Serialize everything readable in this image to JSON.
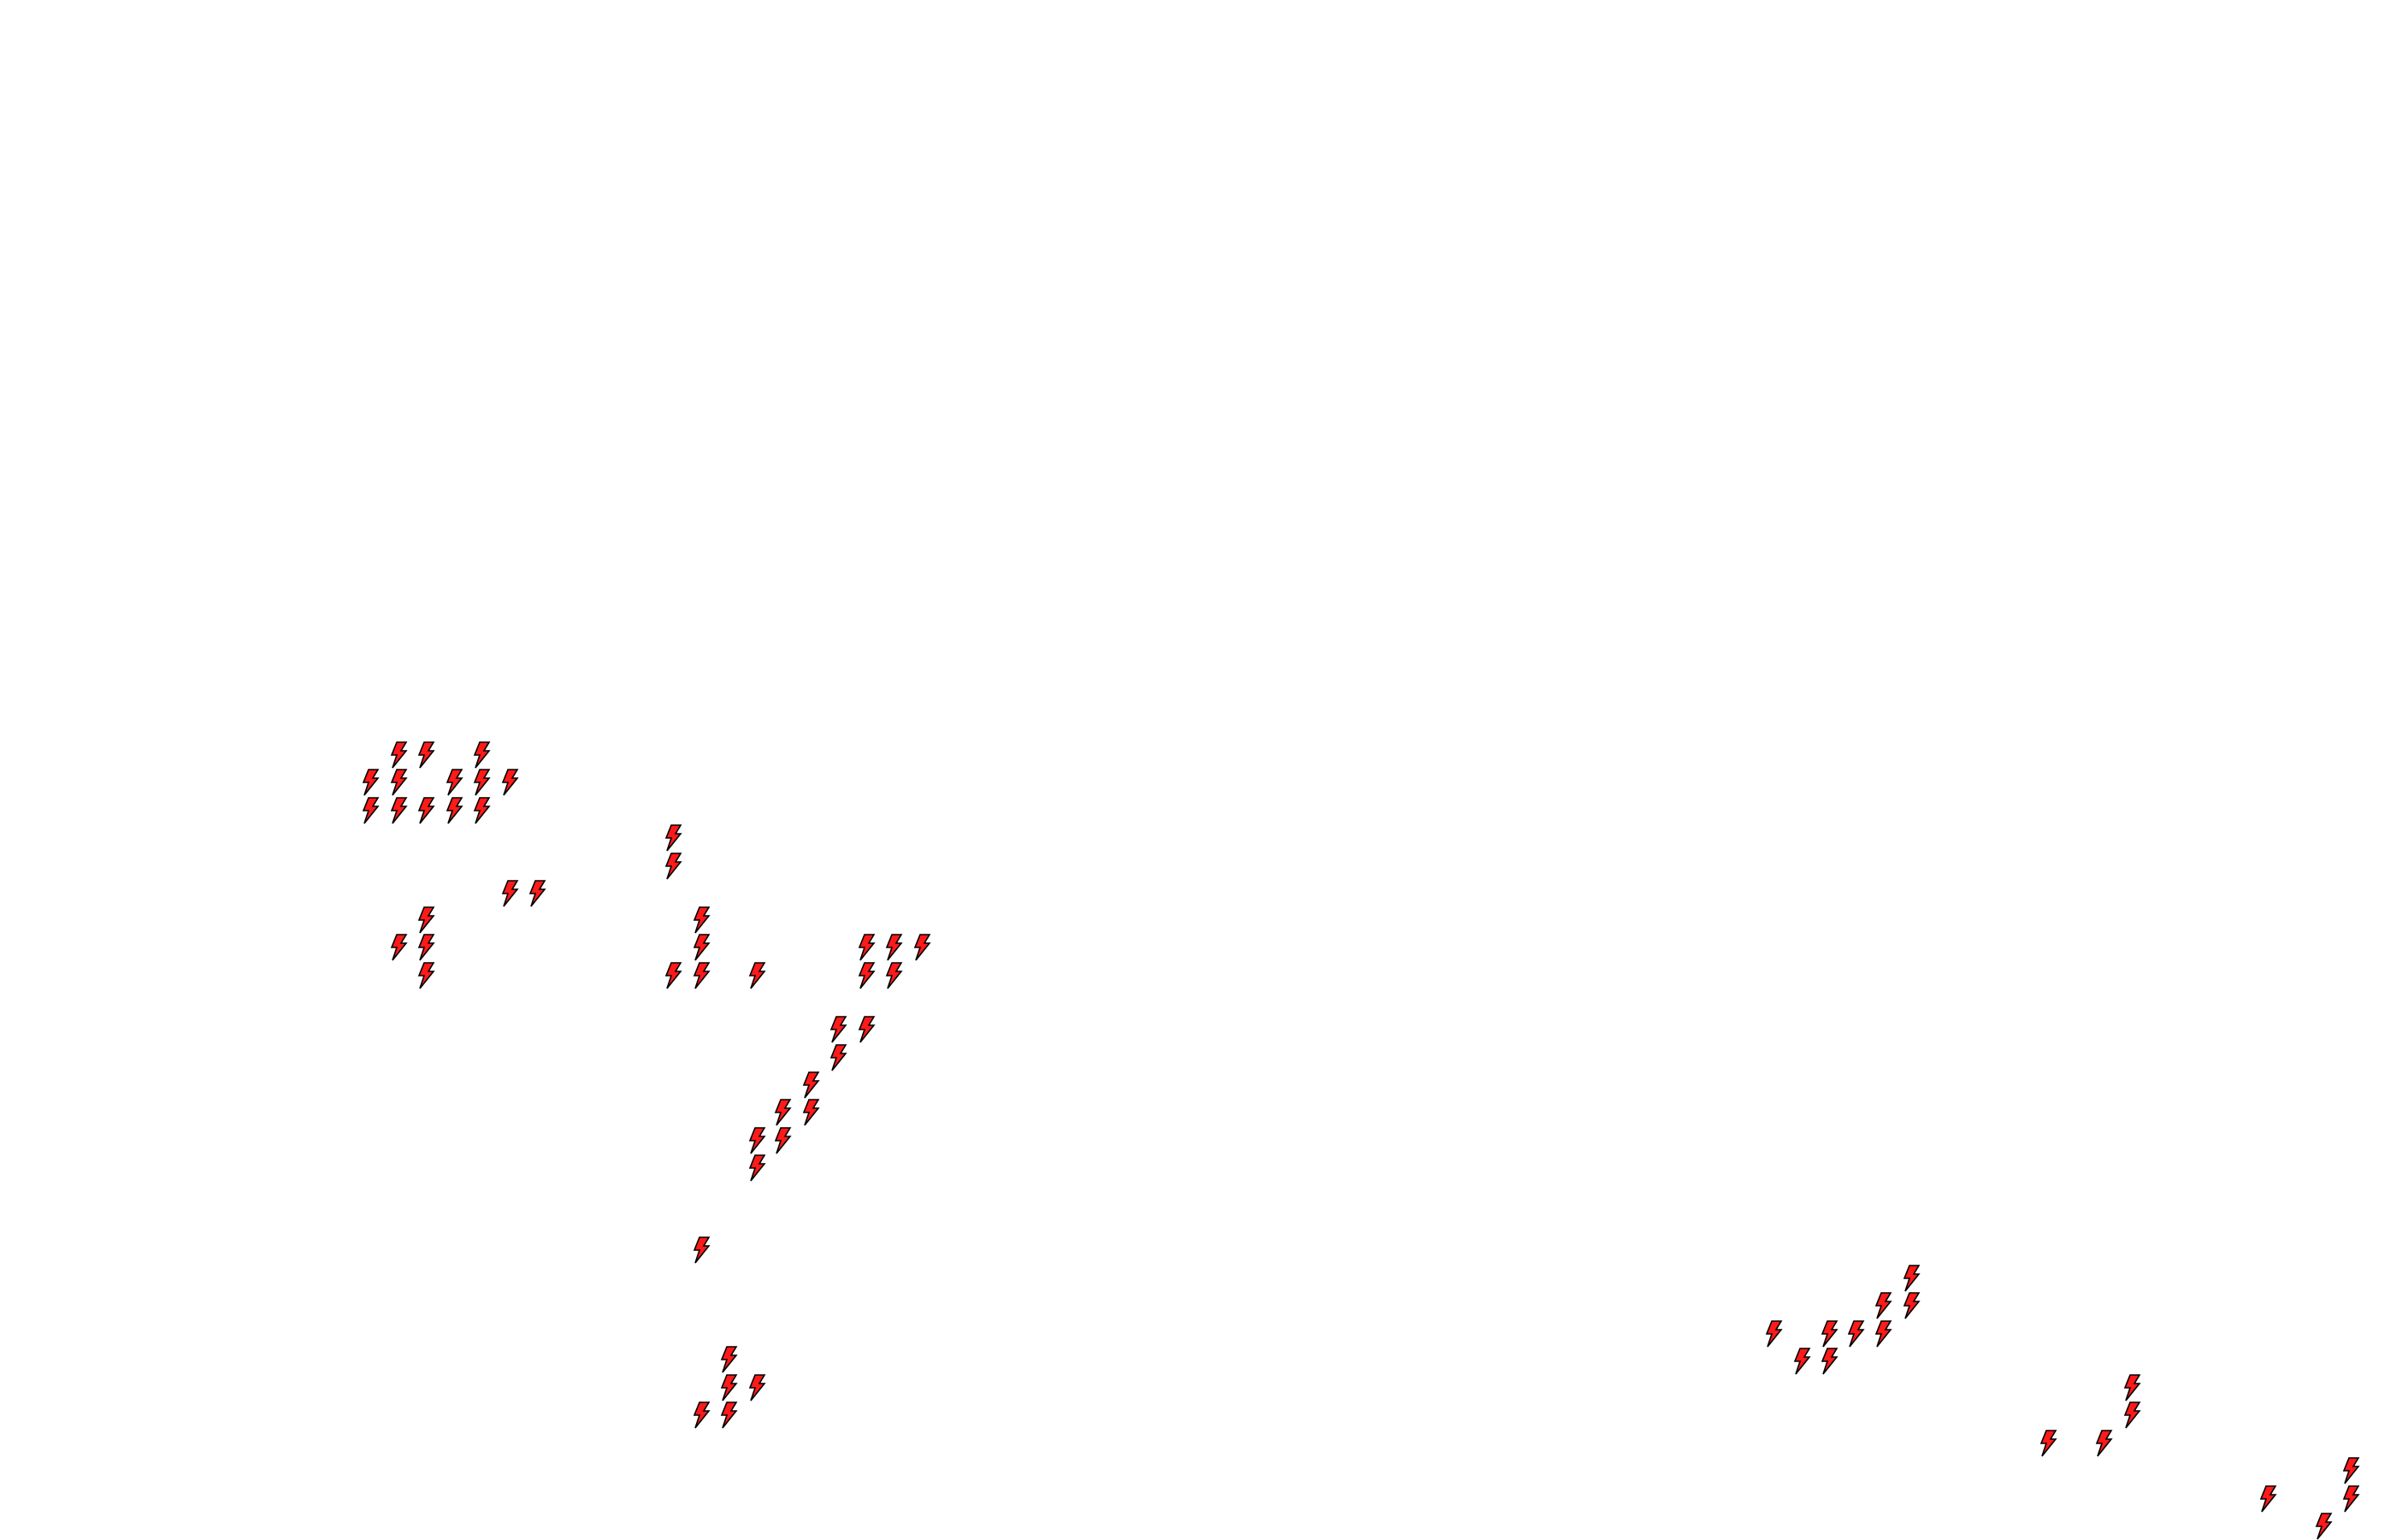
{
  "map": {
    "background": "#ffffff",
    "marker": {
      "icon": "lightning-bolt-icon",
      "fill": "#ff1a1a",
      "stroke": "#000000",
      "count": 70
    }
  }
}
